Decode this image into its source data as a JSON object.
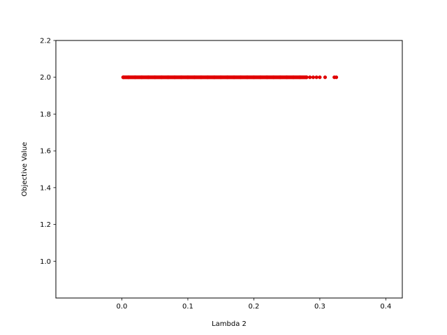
{
  "chart_data": {
    "type": "scatter",
    "xlabel": "Lambda 2",
    "ylabel": "Objective Value",
    "xlim": [
      -0.1,
      0.425
    ],
    "ylim": [
      0.8,
      2.2
    ],
    "xticks": [
      0.0,
      0.1,
      0.2,
      0.3,
      0.4
    ],
    "yticks": [
      1.0,
      1.2,
      1.4,
      1.6,
      1.8,
      2.0,
      2.2
    ],
    "xtick_labels": [
      "0.0",
      "0.1",
      "0.2",
      "0.3",
      "0.4"
    ],
    "ytick_labels": [
      "1.0",
      "1.2",
      "1.4",
      "1.6",
      "1.8",
      "2.0",
      "2.2"
    ],
    "grid": false,
    "series": [
      {
        "color": "#e00000",
        "x": [
          0.002,
          0.01,
          0.02,
          0.03,
          0.04,
          0.05,
          0.06,
          0.07,
          0.08,
          0.09,
          0.1,
          0.11,
          0.12,
          0.13,
          0.14,
          0.15,
          0.16,
          0.17,
          0.18,
          0.19,
          0.2,
          0.21,
          0.22,
          0.23,
          0.24,
          0.25,
          0.26,
          0.27,
          0.28,
          0.285,
          0.29,
          0.295,
          0.3,
          0.308,
          0.322,
          0.325
        ],
        "y": [
          2.0,
          2.0,
          2.0,
          2.0,
          2.0,
          2.0,
          2.0,
          2.0,
          2.0,
          2.0,
          2.0,
          2.0,
          2.0,
          2.0,
          2.0,
          2.0,
          2.0,
          2.0,
          2.0,
          2.0,
          2.0,
          2.0,
          2.0,
          2.0,
          2.0,
          2.0,
          2.0,
          2.0,
          2.0,
          2.0,
          2.0,
          2.0,
          2.0,
          2.0,
          2.0,
          2.0
        ]
      }
    ]
  }
}
